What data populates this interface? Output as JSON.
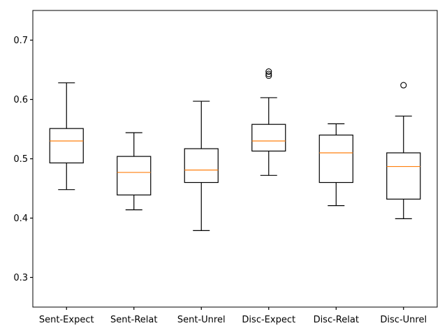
{
  "chart_data": {
    "type": "boxplot",
    "title": "",
    "xlabel": "",
    "ylabel": "",
    "ylim": [
      0.25,
      0.75
    ],
    "yticks": [
      0.3,
      0.4,
      0.5,
      0.6,
      0.7
    ],
    "ytick_labels": [
      "0.3",
      "0.4",
      "0.5",
      "0.6",
      "0.7"
    ],
    "grid": false,
    "categories": [
      "Sent-Expect",
      "Sent-Relat",
      "Sent-Unrel",
      "Disc-Expect",
      "Disc-Relat",
      "Disc-Unrel"
    ],
    "boxes": [
      {
        "whisker_low": 0.448,
        "q1": 0.493,
        "median": 0.53,
        "q3": 0.551,
        "whisker_high": 0.628,
        "outliers": []
      },
      {
        "whisker_low": 0.414,
        "q1": 0.439,
        "median": 0.477,
        "q3": 0.504,
        "whisker_high": 0.544,
        "outliers": []
      },
      {
        "whisker_low": 0.379,
        "q1": 0.46,
        "median": 0.481,
        "q3": 0.517,
        "whisker_high": 0.597,
        "outliers": []
      },
      {
        "whisker_low": 0.472,
        "q1": 0.513,
        "median": 0.53,
        "q3": 0.558,
        "whisker_high": 0.603,
        "outliers": [
          0.64,
          0.643,
          0.647
        ]
      },
      {
        "whisker_low": 0.421,
        "q1": 0.46,
        "median": 0.51,
        "q3": 0.54,
        "whisker_high": 0.559,
        "outliers": []
      },
      {
        "whisker_low": 0.399,
        "q1": 0.432,
        "median": 0.487,
        "q3": 0.51,
        "whisker_high": 0.572,
        "outliers": [
          0.624
        ]
      }
    ],
    "colors": {
      "box": "#000000",
      "median": "#ff7f0e",
      "outlier": "#000000",
      "axes": "#000000"
    }
  }
}
